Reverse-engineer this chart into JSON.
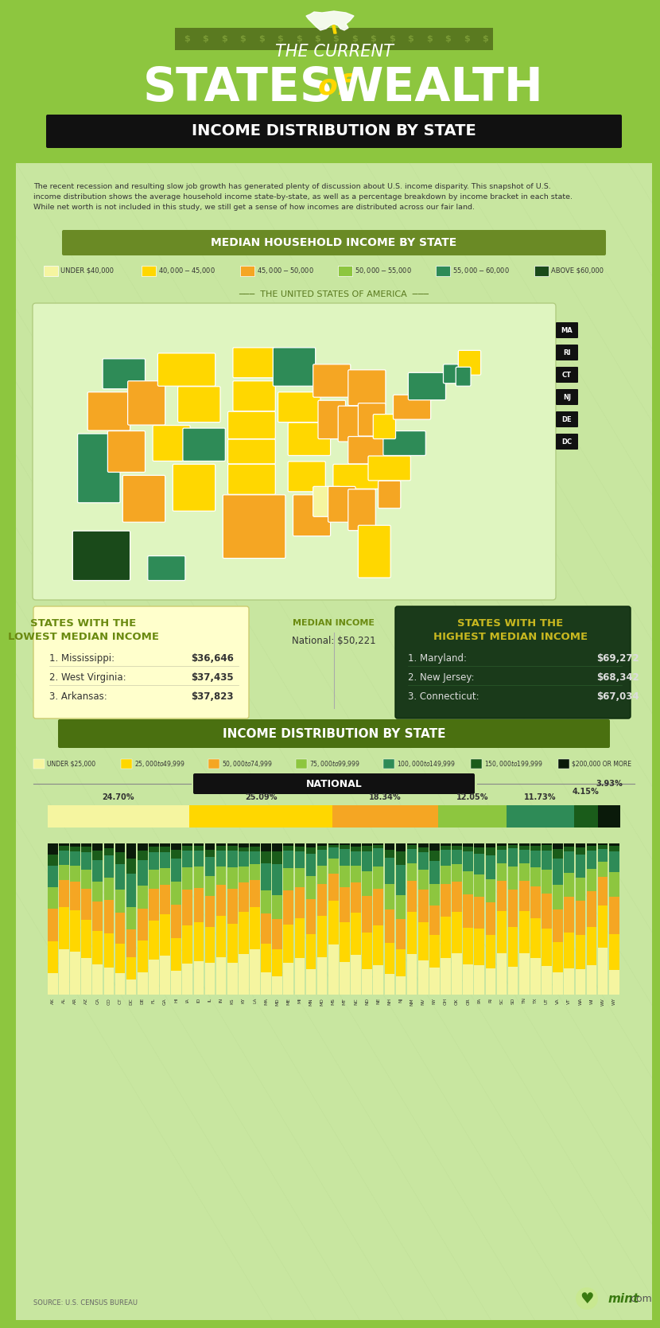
{
  "title_line1": "THE CURRENT",
  "title_line2_left": "STATES",
  "title_line2_of": "of",
  "title_line2_right": "WEALTH",
  "subtitle_banner": "INCOME DISTRIBUTION BY STATE",
  "bg_color": "#8dc63f",
  "bg_color2": "#c8e6a0",
  "dark_green": "#1a3a1a",
  "legend_title": "MEDIAN HOUSEHOLD INCOME BY STATE",
  "legend_items": [
    {
      "label": "UNDER $40,000",
      "color": "#f5f5a0"
    },
    {
      "label": "$40,000 - $45,000",
      "color": "#ffd700"
    },
    {
      "label": "$45,000 - $50,000",
      "color": "#f5a623"
    },
    {
      "label": "$50,000 - $55,000",
      "color": "#8dc63f"
    },
    {
      "label": "$55,000 - $60,000",
      "color": "#2e8b57"
    },
    {
      "label": "ABOVE $60,000",
      "color": "#1a4a1a"
    }
  ],
  "lowest_title": "STATES WITH THE\nLOWEST MEDIAN INCOME",
  "lowest_bg": "#ffffcc",
  "highest_title": "STATES WITH THE\nHIGHEST MEDIAN INCOME",
  "highest_bg": "#1a3a1a",
  "national_median": "National: $50,221",
  "median_income_label": "MEDIAN INCOME",
  "lowest_states": [
    {
      "rank": "1. Mississippi:",
      "value": "$36,646"
    },
    {
      "rank": "2. West Virginia:",
      "value": "$37,435"
    },
    {
      "rank": "3. Arkansas:",
      "value": "$37,823"
    }
  ],
  "highest_states": [
    {
      "rank": "1. Maryland:",
      "value": "$69,272"
    },
    {
      "rank": "2. New Jersey:",
      "value": "$68,342"
    },
    {
      "rank": "3. Connecticut:",
      "value": "$67,034"
    }
  ],
  "dist_banner": "INCOME DISTRIBUTION BY STATE",
  "dist_legend": [
    {
      "label": "UNDER $25,000",
      "color": "#f5f5a0"
    },
    {
      "label": "$25,000 to $49,999",
      "color": "#ffd700"
    },
    {
      "label": "$50,000 to $74,999",
      "color": "#f5a623"
    },
    {
      "label": "$75,000 to $99,999",
      "color": "#8dc63f"
    },
    {
      "label": "$100,000 to $149,999",
      "color": "#2e8b57"
    },
    {
      "label": "$150,000 to $199,999",
      "color": "#1a5c1a"
    },
    {
      "label": "$200,000 OR MORE",
      "color": "#0a1a0a"
    }
  ],
  "national_banner": "NATIONAL",
  "national_dist": [
    {
      "pct": 24.7,
      "color": "#f5f5a0",
      "label": "24.70%"
    },
    {
      "pct": 25.09,
      "color": "#ffd700",
      "label": "25.09%"
    },
    {
      "pct": 18.34,
      "color": "#f5a623",
      "label": "18.34%"
    },
    {
      "pct": 12.05,
      "color": "#8dc63f",
      "label": "12.05%"
    },
    {
      "pct": 11.73,
      "color": "#2e8b57",
      "label": "11.73%"
    },
    {
      "pct": 4.15,
      "color": "#1a5c1a",
      "label": "4.15%"
    },
    {
      "pct": 3.93,
      "color": "#0a1a0a",
      "label": "3.93%"
    }
  ],
  "states_abbr": [
    "AK",
    "AL",
    "AR",
    "AZ",
    "CA",
    "CO",
    "CT",
    "DC",
    "DE",
    "FL",
    "GA",
    "HI",
    "IA",
    "ID",
    "IL",
    "IN",
    "KS",
    "KY",
    "LA",
    "MA",
    "MD",
    "ME",
    "MI",
    "MN",
    "MO",
    "MS",
    "MT",
    "NC",
    "ND",
    "NE",
    "NH",
    "NJ",
    "NM",
    "NV",
    "NY",
    "OH",
    "OK",
    "OR",
    "PA",
    "RI",
    "SC",
    "SD",
    "TN",
    "TX",
    "UT",
    "VA",
    "VT",
    "WA",
    "WI",
    "WV",
    "WY"
  ],
  "states_dist": [
    [
      14.1,
      21.2,
      21.7,
      14.2,
      14.0,
      7.6,
      7.2
    ],
    [
      30.0,
      28.0,
      18.0,
      10.0,
      9.5,
      2.8,
      1.7
    ],
    [
      28.5,
      27.5,
      19.0,
      10.5,
      9.0,
      3.2,
      2.3
    ],
    [
      24.0,
      25.5,
      20.5,
      12.5,
      11.5,
      3.8,
      2.2
    ],
    [
      20.0,
      22.0,
      19.5,
      13.5,
      14.0,
      6.5,
      4.5
    ],
    [
      18.0,
      22.5,
      22.0,
      15.0,
      14.5,
      5.0,
      3.0
    ],
    [
      14.0,
      19.5,
      20.5,
      15.5,
      17.0,
      7.5,
      6.0
    ],
    [
      10.0,
      15.0,
      18.0,
      15.0,
      22.0,
      10.0,
      10.0
    ],
    [
      15.0,
      21.0,
      21.0,
      15.0,
      17.0,
      6.5,
      4.5
    ],
    [
      23.0,
      26.0,
      21.0,
      12.5,
      11.5,
      4.0,
      2.0
    ],
    [
      26.0,
      27.0,
      19.5,
      11.0,
      10.5,
      3.8,
      2.2
    ],
    [
      16.0,
      21.5,
      22.0,
      15.0,
      15.5,
      6.0,
      4.0
    ],
    [
      20.5,
      25.5,
      23.5,
      14.5,
      11.5,
      3.0,
      1.5
    ],
    [
      22.0,
      26.0,
      22.5,
      14.0,
      11.0,
      3.0,
      1.5
    ],
    [
      21.0,
      24.0,
      20.5,
      13.0,
      12.5,
      5.0,
      4.0
    ],
    [
      25.0,
      27.0,
      20.5,
      12.5,
      10.5,
      3.0,
      1.5
    ],
    [
      21.0,
      26.0,
      23.0,
      14.0,
      11.5,
      3.0,
      1.5
    ],
    [
      27.0,
      27.5,
      19.5,
      11.0,
      9.5,
      3.0,
      2.5
    ],
    [
      30.0,
      28.0,
      18.0,
      10.5,
      8.5,
      3.0,
      2.0
    ],
    [
      14.5,
      19.0,
      20.0,
      15.5,
      18.0,
      7.5,
      5.5
    ],
    [
      12.0,
      18.0,
      20.0,
      16.0,
      20.5,
      8.0,
      5.5
    ],
    [
      21.0,
      25.5,
      22.5,
      14.5,
      12.0,
      3.0,
      1.5
    ],
    [
      24.0,
      26.5,
      20.5,
      12.5,
      11.0,
      3.5,
      2.0
    ],
    [
      17.0,
      23.0,
      23.0,
      15.5,
      14.5,
      4.5,
      2.5
    ],
    [
      24.5,
      27.5,
      21.0,
      12.5,
      10.5,
      2.5,
      1.5
    ],
    [
      33.0,
      29.0,
      18.0,
      10.0,
      7.5,
      1.5,
      1.0
    ],
    [
      21.5,
      26.5,
      23.0,
      14.5,
      11.0,
      2.5,
      1.0
    ],
    [
      26.5,
      27.5,
      20.0,
      11.5,
      9.5,
      3.0,
      2.0
    ],
    [
      17.0,
      24.0,
      24.5,
      16.0,
      13.5,
      3.5,
      1.5
    ],
    [
      19.5,
      26.5,
      24.0,
      15.0,
      12.0,
      2.0,
      1.0
    ],
    [
      13.5,
      20.5,
      22.5,
      16.5,
      17.5,
      5.5,
      4.0
    ],
    [
      12.0,
      18.0,
      20.0,
      16.0,
      20.0,
      8.5,
      5.5
    ],
    [
      27.0,
      27.5,
      21.0,
      11.5,
      9.5,
      2.5,
      1.0
    ],
    [
      22.5,
      25.5,
      21.5,
      13.0,
      11.5,
      3.5,
      2.5
    ],
    [
      18.0,
      21.5,
      19.5,
      14.0,
      15.5,
      7.0,
      4.5
    ],
    [
      24.0,
      27.5,
      21.5,
      12.5,
      10.5,
      2.5,
      1.5
    ],
    [
      27.5,
      27.0,
      20.5,
      11.5,
      9.5,
      2.5,
      1.5
    ],
    [
      20.0,
      24.0,
      22.5,
      15.0,
      13.0,
      3.5,
      2.0
    ],
    [
      19.5,
      24.0,
      21.5,
      14.5,
      13.5,
      4.5,
      2.5
    ],
    [
      17.5,
      22.0,
      21.5,
      15.5,
      15.5,
      5.5,
      2.5
    ],
    [
      27.5,
      28.0,
      20.0,
      11.5,
      9.0,
      2.5,
      1.5
    ],
    [
      18.5,
      26.0,
      25.0,
      15.5,
      12.0,
      2.0,
      1.0
    ],
    [
      27.5,
      28.0,
      20.0,
      11.5,
      9.0,
      2.5,
      1.5
    ],
    [
      24.0,
      26.5,
      21.0,
      12.5,
      11.5,
      3.0,
      1.5
    ],
    [
      19.0,
      24.5,
      23.5,
      15.5,
      13.0,
      3.5,
      1.0
    ],
    [
      15.0,
      20.0,
      21.5,
      16.0,
      17.5,
      6.5,
      3.5
    ],
    [
      17.5,
      23.5,
      23.5,
      16.0,
      14.0,
      3.5,
      2.0
    ],
    [
      17.0,
      22.5,
      22.5,
      15.5,
      15.0,
      5.0,
      2.5
    ],
    [
      19.5,
      25.5,
      23.5,
      14.5,
      12.5,
      3.0,
      1.5
    ],
    [
      31.0,
      28.0,
      19.0,
      10.0,
      8.5,
      2.5,
      1.0
    ],
    [
      16.5,
      23.5,
      24.5,
      16.5,
      14.0,
      3.5,
      1.5
    ]
  ],
  "source_text": "SOURCE: U.S. CENSUS BUREAU",
  "mint_text": "mint.com",
  "intro_text": "The recent recession and resulting slow job growth has generated plenty of discussion about U.S. income disparity. This snapshot of U.S.\nincome distribution shows the average household income state-by-state, as well as a percentage breakdown by income bracket in each state.\nWhile net worth is not included in this study, we still get a sense of how incomes are distributed across our fair land."
}
